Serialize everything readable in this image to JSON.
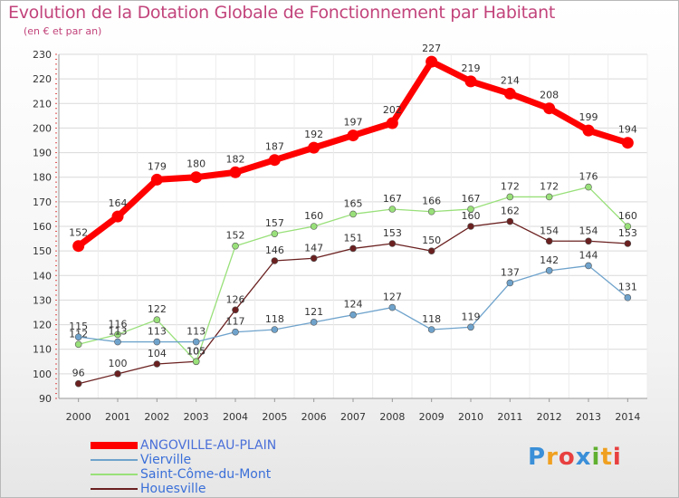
{
  "title": "Evolution de la Dotation Globale de Fonctionnement par Habitant",
  "subtitle": "(en € et par an)",
  "brand": "Proxiti",
  "chart_data": {
    "type": "line",
    "title": "Evolution de la Dotation Globale de Fonctionnement par Habitant",
    "ylabel": "(en € et par an)",
    "xlabel": "",
    "categories": [
      "2000",
      "2001",
      "2002",
      "2003",
      "2004",
      "2005",
      "2006",
      "2007",
      "2008",
      "2009",
      "2010",
      "2011",
      "2012",
      "2013",
      "2014"
    ],
    "ylim": [
      90,
      230
    ],
    "yticks": [
      90,
      100,
      110,
      120,
      130,
      140,
      150,
      160,
      170,
      180,
      190,
      200,
      210,
      220,
      230
    ],
    "grid": true,
    "series": [
      {
        "name": "ANGOVILLE-AU-PLAIN",
        "color": "#ff0000",
        "values": [
          152,
          164,
          179,
          180,
          182,
          187,
          192,
          197,
          202,
          227,
          219,
          214,
          208,
          199,
          194
        ]
      },
      {
        "name": "Vierville",
        "color": "#6fa3cc",
        "values": [
          115,
          113,
          113,
          113,
          117,
          118,
          121,
          124,
          127,
          118,
          119,
          137,
          142,
          144,
          131
        ]
      },
      {
        "name": "Saint-Côme-du-Mont",
        "color": "#99e07a",
        "values": [
          112,
          116,
          122,
          105,
          152,
          157,
          160,
          165,
          167,
          166,
          167,
          172,
          172,
          176,
          160
        ]
      },
      {
        "name": "Houesville",
        "color": "#6b2020",
        "values": [
          96,
          100,
          104,
          105,
          126,
          146,
          147,
          151,
          153,
          150,
          160,
          162,
          154,
          154,
          153
        ]
      }
    ]
  }
}
